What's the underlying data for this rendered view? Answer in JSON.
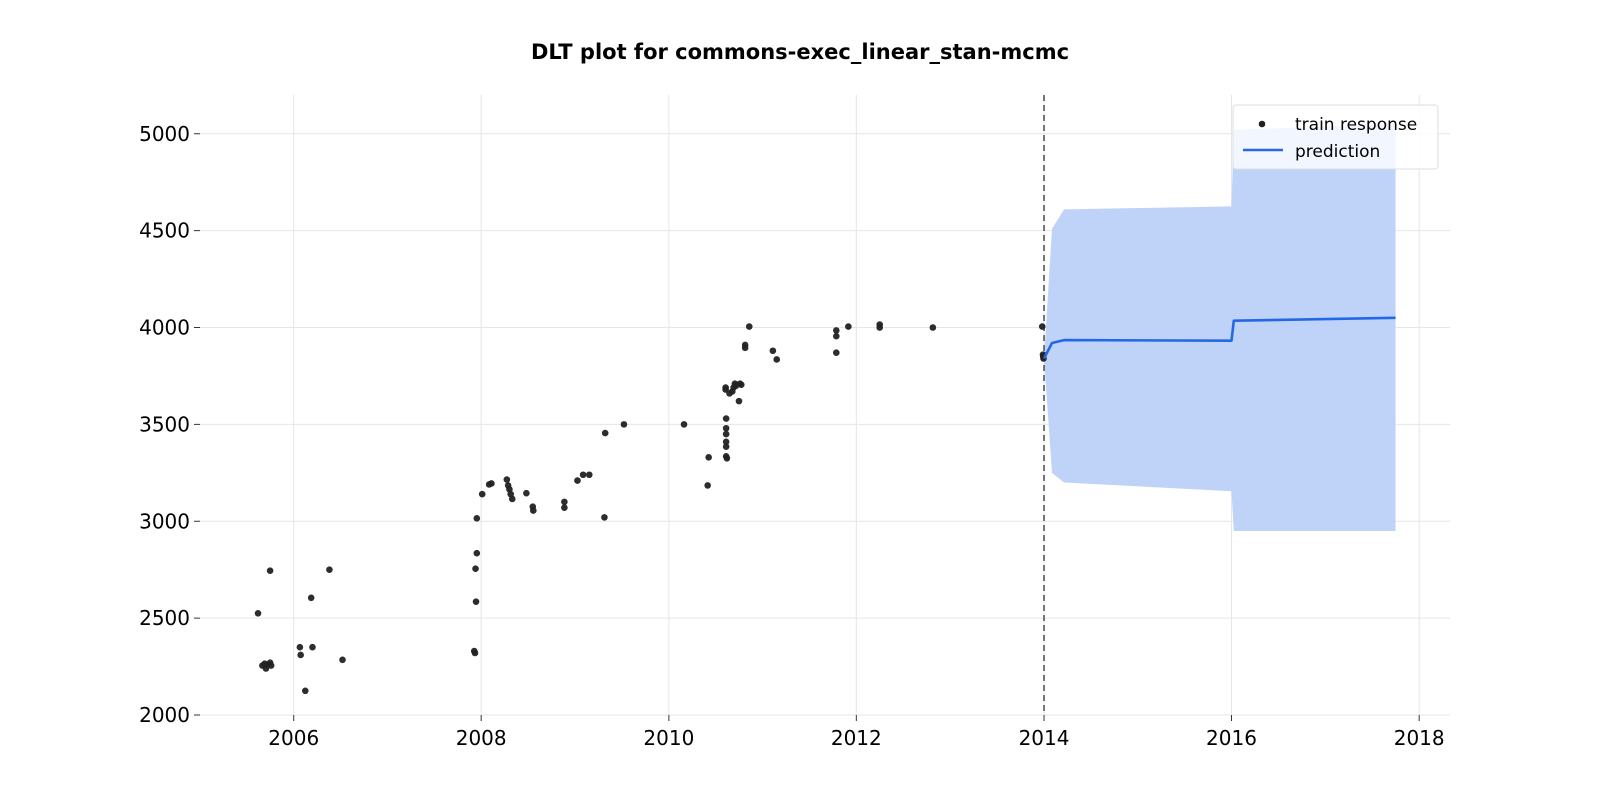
{
  "chart_data": {
    "type": "scatter",
    "title": "DLT plot for commons-exec_linear_stan-mcmc",
    "xlabel": "",
    "ylabel": "",
    "xlim": [
      "2005-01-01",
      "2018-05-01"
    ],
    "ylim": [
      2000,
      5200
    ],
    "x_ticks": [
      "2006",
      "2008",
      "2010",
      "2012",
      "2014",
      "2016",
      "2018"
    ],
    "y_ticks": [
      "2000",
      "2500",
      "3000",
      "3500",
      "4000",
      "4500",
      "5000"
    ],
    "grid": true,
    "legend": {
      "placement": "top-right",
      "entries": [
        "train response",
        "prediction"
      ]
    },
    "colors": {
      "points": "#222222",
      "prediction": "#2468e6",
      "band": "#bfd3f9",
      "cutoff": "#555555"
    },
    "cutoff_date": "2014-01-01",
    "series": [
      {
        "name": "train response",
        "type": "scatter",
        "points": [
          [
            "2005-08-15",
            2525
          ],
          [
            "2005-09-01",
            2255
          ],
          [
            "2005-09-10",
            2265
          ],
          [
            "2005-09-15",
            2240
          ],
          [
            "2005-09-20",
            2260
          ],
          [
            "2005-10-01",
            2745
          ],
          [
            "2005-10-01",
            2270
          ],
          [
            "2005-10-05",
            2255
          ],
          [
            "2006-01-25",
            2350
          ],
          [
            "2006-01-28",
            2310
          ],
          [
            "2006-02-15",
            2125
          ],
          [
            "2006-03-10",
            2605
          ],
          [
            "2006-03-15",
            2350
          ],
          [
            "2006-05-20",
            2750
          ],
          [
            "2006-07-10",
            2285
          ],
          [
            "2007-12-05",
            2330
          ],
          [
            "2007-12-08",
            2320
          ],
          [
            "2007-12-12",
            2585
          ],
          [
            "2007-12-10",
            2755
          ],
          [
            "2007-12-15",
            2835
          ],
          [
            "2007-12-15",
            3015
          ],
          [
            "2008-01-05",
            3140
          ],
          [
            "2008-02-01",
            3190
          ],
          [
            "2008-02-10",
            3195
          ],
          [
            "2008-04-10",
            3215
          ],
          [
            "2008-04-15",
            3185
          ],
          [
            "2008-04-20",
            3165
          ],
          [
            "2008-04-25",
            3140
          ],
          [
            "2008-05-01",
            3115
          ],
          [
            "2008-06-25",
            3145
          ],
          [
            "2008-07-20",
            3075
          ],
          [
            "2008-07-22",
            3055
          ],
          [
            "2008-11-20",
            3100
          ],
          [
            "2008-11-20",
            3070
          ],
          [
            "2009-01-10",
            3210
          ],
          [
            "2009-02-01",
            3240
          ],
          [
            "2009-02-25",
            3240
          ],
          [
            "2009-04-25",
            3020
          ],
          [
            "2009-04-28",
            3455
          ],
          [
            "2009-07-10",
            3500
          ],
          [
            "2010-03-01",
            3500
          ],
          [
            "2010-06-01",
            3185
          ],
          [
            "2010-06-05",
            3330
          ],
          [
            "2010-08-10",
            3690
          ],
          [
            "2010-08-10",
            3680
          ],
          [
            "2010-08-12",
            3530
          ],
          [
            "2010-08-12",
            3480
          ],
          [
            "2010-08-12",
            3450
          ],
          [
            "2010-08-12",
            3410
          ],
          [
            "2010-08-12",
            3385
          ],
          [
            "2010-08-12",
            3335
          ],
          [
            "2010-08-15",
            3325
          ],
          [
            "2010-08-25",
            3660
          ],
          [
            "2010-09-05",
            3670
          ],
          [
            "2010-09-10",
            3690
          ],
          [
            "2010-09-15",
            3710
          ],
          [
            "2010-09-20",
            3700
          ],
          [
            "2010-10-01",
            3620
          ],
          [
            "2010-10-05",
            3710
          ],
          [
            "2010-10-10",
            3705
          ],
          [
            "2010-10-25",
            3910
          ],
          [
            "2010-10-25",
            3895
          ],
          [
            "2010-11-10",
            4005
          ],
          [
            "2011-02-10",
            3880
          ],
          [
            "2011-02-25",
            3835
          ],
          [
            "2011-10-15",
            3870
          ],
          [
            "2011-10-15",
            3955
          ],
          [
            "2011-10-15",
            3985
          ],
          [
            "2011-12-01",
            4005
          ],
          [
            "2012-04-01",
            4015
          ],
          [
            "2012-04-01",
            4000
          ],
          [
            "2012-10-25",
            4000
          ],
          [
            "2013-12-25",
            4005
          ],
          [
            "2013-12-28",
            3860
          ],
          [
            "2013-12-29",
            3850
          ],
          [
            "2013-12-30",
            3840
          ]
        ]
      },
      {
        "name": "prediction",
        "type": "line",
        "x": [
          "2014-01-01",
          "2014-02-01",
          "2014-03-20",
          "2016-01-01",
          "2016-01-10",
          "2017-10-01"
        ],
        "y": [
          3840,
          3920,
          3935,
          3932,
          4035,
          4050
        ],
        "lower": [
          3840,
          3250,
          3200,
          3155,
          2950,
          2950
        ],
        "upper": [
          3840,
          4510,
          4610,
          4625,
          5020,
          5050
        ]
      }
    ]
  }
}
